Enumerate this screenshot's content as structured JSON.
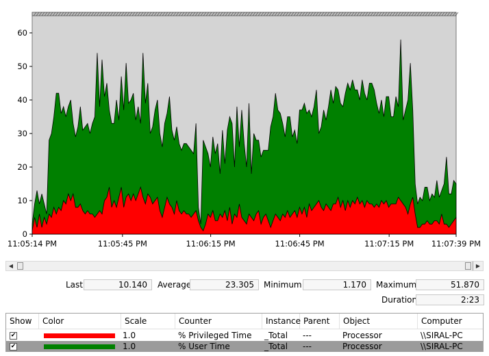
{
  "chart_data": {
    "type": "area",
    "stacked": true,
    "xlabels": [
      "11:05:14 PM",
      "11:05:45 PM",
      "11:06:15 PM",
      "11:06:45 PM",
      "11:07:15 PM",
      "11:07:39 PM"
    ],
    "y_ticks": [
      "0",
      "10",
      "20",
      "30",
      "40",
      "50",
      "60"
    ],
    "ylim": [
      0,
      66
    ],
    "grid": false,
    "background": "#d4d4d4",
    "series": [
      {
        "counter": "% Privileged Time",
        "color": "#ff0000",
        "values": [
          1,
          5,
          2,
          6,
          2,
          5,
          3,
          6,
          5,
          8,
          6,
          8,
          7,
          10,
          9,
          12,
          10,
          12,
          8,
          8,
          9,
          7,
          6,
          7,
          6,
          6,
          5,
          6,
          7,
          6,
          10,
          11,
          14,
          8,
          10,
          8,
          11,
          14,
          8,
          11,
          12,
          10,
          12,
          10,
          12,
          14,
          11,
          9,
          12,
          11,
          9,
          10,
          11,
          7,
          5,
          8,
          11,
          9,
          8,
          6,
          10,
          7,
          6,
          7,
          6,
          6,
          5,
          6,
          7,
          4,
          2,
          1,
          3,
          6,
          5,
          7,
          4,
          4,
          6,
          5,
          7,
          4,
          8,
          3,
          6,
          5,
          9,
          5,
          4,
          3,
          6,
          5,
          4,
          6,
          7,
          3,
          5,
          6,
          4,
          2,
          4,
          6,
          5,
          4,
          6,
          5,
          7,
          5,
          6,
          7,
          5,
          8,
          6,
          8,
          5,
          9,
          7,
          8,
          9,
          10,
          8,
          7,
          9,
          8,
          7,
          9,
          9,
          11,
          8,
          10,
          7,
          10,
          8,
          10,
          9,
          11,
          9,
          10,
          8,
          10,
          9,
          9,
          8,
          9,
          8,
          10,
          9,
          10,
          8,
          9,
          9,
          9,
          11,
          10,
          9,
          8,
          6,
          9,
          11,
          6,
          2,
          2,
          3,
          3,
          4,
          3,
          3,
          4,
          4,
          3,
          6,
          3,
          3,
          2,
          3,
          4,
          5
        ],
        "max_value": 51.87
      },
      {
        "counter": "% User Time",
        "color": "#008000",
        "values": [
          2,
          4,
          11,
          3,
          10,
          4,
          3,
          22,
          25,
          27,
          36,
          34,
          29,
          28,
          26,
          26,
          30,
          21,
          21,
          24,
          29,
          24,
          26,
          26,
          24,
          27,
          30,
          48,
          31,
          46,
          31,
          34,
          23,
          25,
          23,
          32,
          23,
          33,
          29,
          40,
          27,
          30,
          30,
          24,
          26,
          19,
          43,
          30,
          33,
          19,
          23,
          27,
          29,
          23,
          21,
          25,
          25,
          32,
          23,
          22,
          22,
          20,
          19,
          20,
          21,
          20,
          20,
          18,
          26,
          4,
          1,
          27,
          23,
          18,
          15,
          22,
          20,
          23,
          12,
          26,
          14,
          27,
          27,
          30,
          14,
          33,
          17,
          32,
          23,
          17,
          33,
          13,
          26,
          22,
          21,
          20,
          20,
          19,
          21,
          30,
          31,
          36,
          32,
          32,
          27,
          24,
          28,
          30,
          23,
          24,
          22,
          29,
          31,
          31,
          31,
          28,
          28,
          30,
          34,
          20,
          24,
          30,
          25,
          30,
          36,
          30,
          35,
          32,
          31,
          28,
          35,
          35,
          35,
          36,
          34,
          32,
          31,
          36,
          34,
          30,
          36,
          36,
          35,
          30,
          28,
          30,
          26,
          31,
          33,
          26,
          26,
          32,
          27,
          48,
          25,
          29,
          34,
          42,
          26,
          9,
          7,
          9,
          7,
          11,
          10,
          7,
          9,
          7,
          12,
          8,
          7,
          12,
          20,
          10,
          9,
          12,
          10
        ],
        "max_value": 51.87
      }
    ]
  },
  "stats": {
    "last_label": "Last",
    "last_value": "10.140",
    "average_label": "Average",
    "average_value": "23.305",
    "minimum_label": "Minimum",
    "minimum_value": "1.170",
    "maximum_label": "Maximum",
    "maximum_value": "51.870",
    "duration_label": "Duration",
    "duration_value": "2:23"
  },
  "legend": {
    "headers": [
      "Show",
      "Color",
      "Scale",
      "Counter",
      "Instance",
      "Parent",
      "Object",
      "Computer"
    ],
    "rows": [
      {
        "show": "✔",
        "color": "#ff0000",
        "scale": "1.0",
        "counter": "% Privileged Time",
        "instance": "_Total",
        "parent": "---",
        "object": "Processor",
        "computer": "\\\\SIRAL-PC",
        "selected": false
      },
      {
        "show": "✔",
        "color": "#008000",
        "scale": "1.0",
        "counter": "% User Time",
        "instance": "_Total",
        "parent": "---",
        "object": "Processor",
        "computer": "\\\\SIRAL-PC",
        "selected": true
      }
    ]
  },
  "icons": {
    "scroll_left": "◀",
    "scroll_right": "▶"
  }
}
